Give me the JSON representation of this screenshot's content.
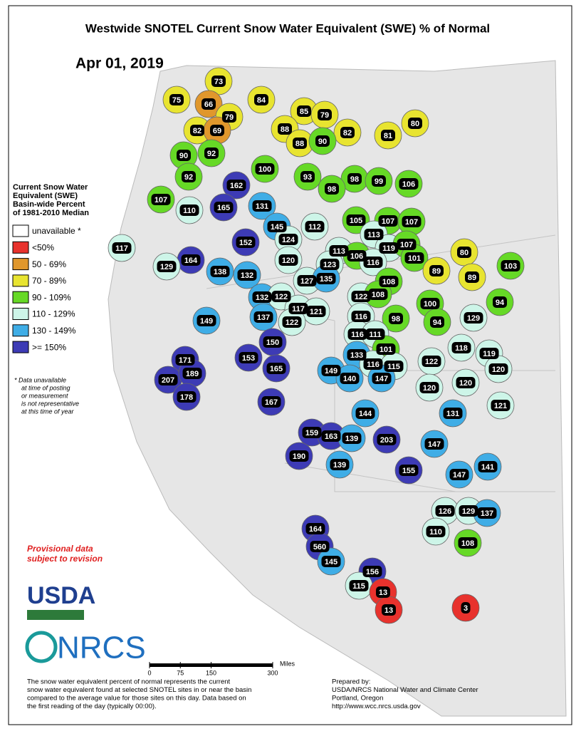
{
  "title": "Westwide SNOTEL Current Snow Water Equivalent (SWE) % of Normal",
  "date": "Apr 01, 2019",
  "legend": {
    "title": [
      "Current Snow Water",
      "Equivalent (SWE)",
      "Basin-wide Percent",
      "of 1981-2010 Median"
    ],
    "items": [
      {
        "label": "unavailable *",
        "color": "#ffffff"
      },
      {
        "label": "<50%",
        "color": "#e8322d",
        "max": 50
      },
      {
        "label": "50 - 69%",
        "color": "#e0972c",
        "min": 50
      },
      {
        "label": "70 - 89%",
        "color": "#e8e430",
        "min": 70
      },
      {
        "label": "90 - 109%",
        "color": "#66d926",
        "min": 90
      },
      {
        "label": "110 - 129%",
        "color": "#cdf5e8",
        "min": 110
      },
      {
        "label": "130 - 149%",
        "color": "#3fade6",
        "min": 130
      },
      {
        "label": ">= 150%",
        "color": "#3d3bb5",
        "min": 150
      }
    ]
  },
  "footnote": [
    "*  Data unavailable",
    "at time of posting",
    "or measurement",
    "is not representative",
    "at this time of year"
  ],
  "provisional": [
    "Provisional data",
    "subject to revision"
  ],
  "logos": [
    "USDA",
    "NRCS"
  ],
  "scale_bar": {
    "unit": "Miles",
    "ticks": [
      0,
      75,
      150,
      300
    ]
  },
  "description": [
    "The snow water equivalent percent of normal represents the current",
    "snow water equivalent found at selected SNOTEL sites in or near the basin",
    "compared to the average value for those sites on this day. Data based on",
    "the first reading of the day (typically 00:00)."
  ],
  "prepared": [
    "Prepared by:",
    "USDA/NRCS National Water and Climate Center",
    "Portland, Oregon",
    "http://www.wcc.nrcs.usda.gov"
  ],
  "basin_values": [
    73,
    75,
    66,
    84,
    79,
    85,
    79,
    82,
    69,
    88,
    82,
    81,
    80,
    88,
    90,
    90,
    92,
    100,
    93,
    98,
    99,
    106,
    92,
    162,
    98,
    107,
    110,
    165,
    131,
    105,
    107,
    107,
    112,
    145,
    124,
    152,
    113,
    117,
    113,
    119,
    107,
    80,
    101,
    106,
    116,
    164,
    120,
    123,
    103,
    129,
    138,
    132,
    89,
    89,
    127,
    135,
    108,
    132,
    122,
    122,
    108,
    100,
    94,
    117,
    121,
    98,
    149,
    137,
    122,
    116,
    129,
    94,
    116,
    111,
    150,
    118,
    119,
    133,
    101,
    122,
    171,
    153,
    165,
    116,
    115,
    120,
    149,
    140,
    147,
    120,
    120,
    207,
    189,
    178,
    167,
    121,
    144,
    131,
    159,
    163,
    139,
    203,
    147,
    190,
    139,
    155,
    147,
    141,
    126,
    129,
    137,
    110,
    164,
    108,
    560,
    145,
    156,
    115,
    13,
    13,
    3
  ]
}
